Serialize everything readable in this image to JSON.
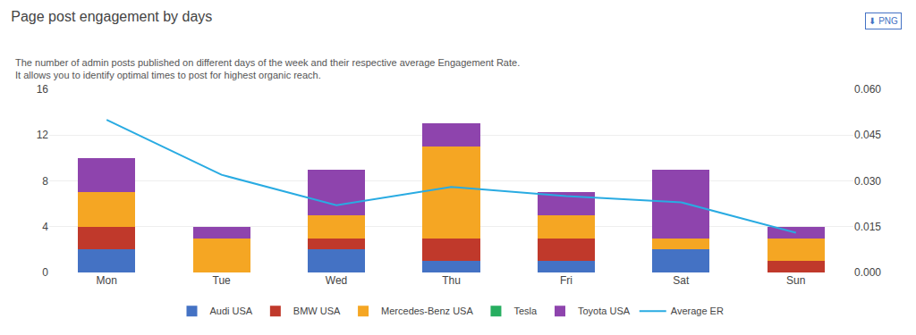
{
  "chart_data": {
    "type": "bar",
    "title": "Page post engagement by days",
    "subtitle": "The number of admin posts published on different days of the week and their respective average Engagement Rate. It allows you to identify optimal times to post for highest organic reach.",
    "annotations": [
      "⬇ PNG"
    ],
    "categories": [
      "Mon",
      "Tue",
      "Wed",
      "Thu",
      "Fri",
      "Sat",
      "Sun"
    ],
    "series": [
      {
        "name": "Audi USA",
        "color": "#4472C4",
        "values": [
          2,
          0,
          2,
          1,
          1,
          2,
          0
        ]
      },
      {
        "name": "BMW USA",
        "color": "#C0392B",
        "values": [
          2,
          0,
          1,
          2,
          2,
          0,
          1
        ]
      },
      {
        "name": "Mercedes-Benz USA",
        "color": "#F5A623",
        "values": [
          3,
          3,
          2,
          8,
          2,
          1,
          2
        ]
      },
      {
        "name": "Tesla",
        "color": "#27AE60",
        "values": [
          0,
          0,
          0,
          0,
          0,
          0,
          0
        ]
      },
      {
        "name": "Toyota USA",
        "color": "#8E44AD",
        "values": [
          3,
          1,
          4,
          2,
          2,
          6,
          1
        ]
      },
      {
        "name": "Average ER",
        "type": "line",
        "axis": "y2",
        "color": "#29ABE2",
        "values": [
          0.05,
          0.032,
          0.022,
          0.028,
          0.025,
          0.023,
          0.013
        ]
      }
    ],
    "stacked": true,
    "ylim": [
      0,
      16
    ],
    "yticks": [
      0,
      4,
      8,
      12,
      16
    ],
    "y2lim": [
      0,
      0.06
    ],
    "y2ticks": [
      {
        "value": 0,
        "label": "0.000"
      },
      {
        "value": 0.015,
        "label": "0.015"
      },
      {
        "value": 0.03,
        "label": "0.030"
      },
      {
        "value": 0.045,
        "label": "0.045"
      },
      {
        "value": 0.06,
        "label": "0.060"
      }
    ],
    "grid": true,
    "legend": "bottom"
  }
}
